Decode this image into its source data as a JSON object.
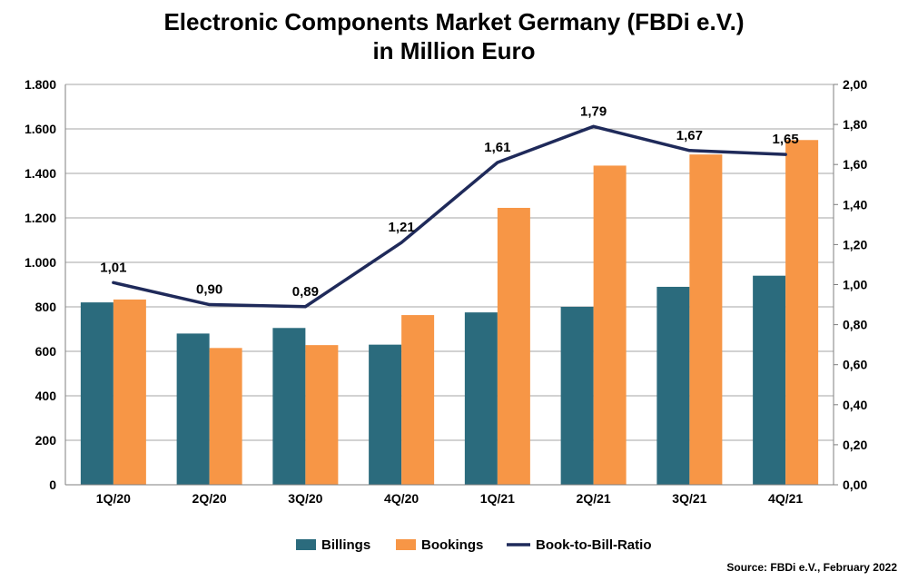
{
  "chart_data": {
    "type": "bar",
    "title": "Electronic Components Market Germany (FBDi e.V.)",
    "subtitle": "in Million Euro",
    "categories": [
      "1Q/20",
      "2Q/20",
      "3Q/20",
      "4Q/20",
      "1Q/21",
      "2Q/21",
      "3Q/21",
      "4Q/21"
    ],
    "series": [
      {
        "name": "Billings",
        "type": "bar",
        "axis": "left",
        "color": "#2B6B7D",
        "values": [
          820,
          680,
          705,
          630,
          775,
          800,
          890,
          940
        ]
      },
      {
        "name": "Bookings",
        "type": "bar",
        "axis": "left",
        "color": "#F79646",
        "values": [
          833,
          615,
          628,
          763,
          1245,
          1435,
          1485,
          1550
        ]
      },
      {
        "name": "Book-to-Bill-Ratio",
        "type": "line",
        "axis": "right",
        "color": "#1F2A5A",
        "values": [
          1.01,
          0.9,
          0.89,
          1.21,
          1.61,
          1.79,
          1.67,
          1.65
        ],
        "labels": [
          "1,01",
          "0,90",
          "0,89",
          "1,21",
          "1,61",
          "1,79",
          "1,67",
          "1,65"
        ]
      }
    ],
    "y_left": {
      "min": 0,
      "max": 1800,
      "ticks": [
        0,
        200,
        400,
        600,
        800,
        1000,
        1200,
        1400,
        1600,
        1800
      ],
      "tick_labels": [
        "0",
        "200",
        "400",
        "600",
        "800",
        "1.000",
        "1.200",
        "1.400",
        "1.600",
        "1.800"
      ]
    },
    "y_right": {
      "min": 0,
      "max": 2,
      "ticks": [
        0,
        0.2,
        0.4,
        0.6,
        0.8,
        1.0,
        1.2,
        1.4,
        1.6,
        1.8,
        2.0
      ],
      "tick_labels": [
        "0,00",
        "0,20",
        "0,40",
        "0,60",
        "0,80",
        "1,00",
        "1,20",
        "1,40",
        "1,60",
        "1,80",
        "2,00"
      ]
    },
    "grid": true,
    "legend": "bottom"
  },
  "title_line1": "Electronic Components Market Germany (FBDi e.V.)",
  "title_line2": "in Million Euro",
  "source": "Source: FBDi e.V., February 2022"
}
